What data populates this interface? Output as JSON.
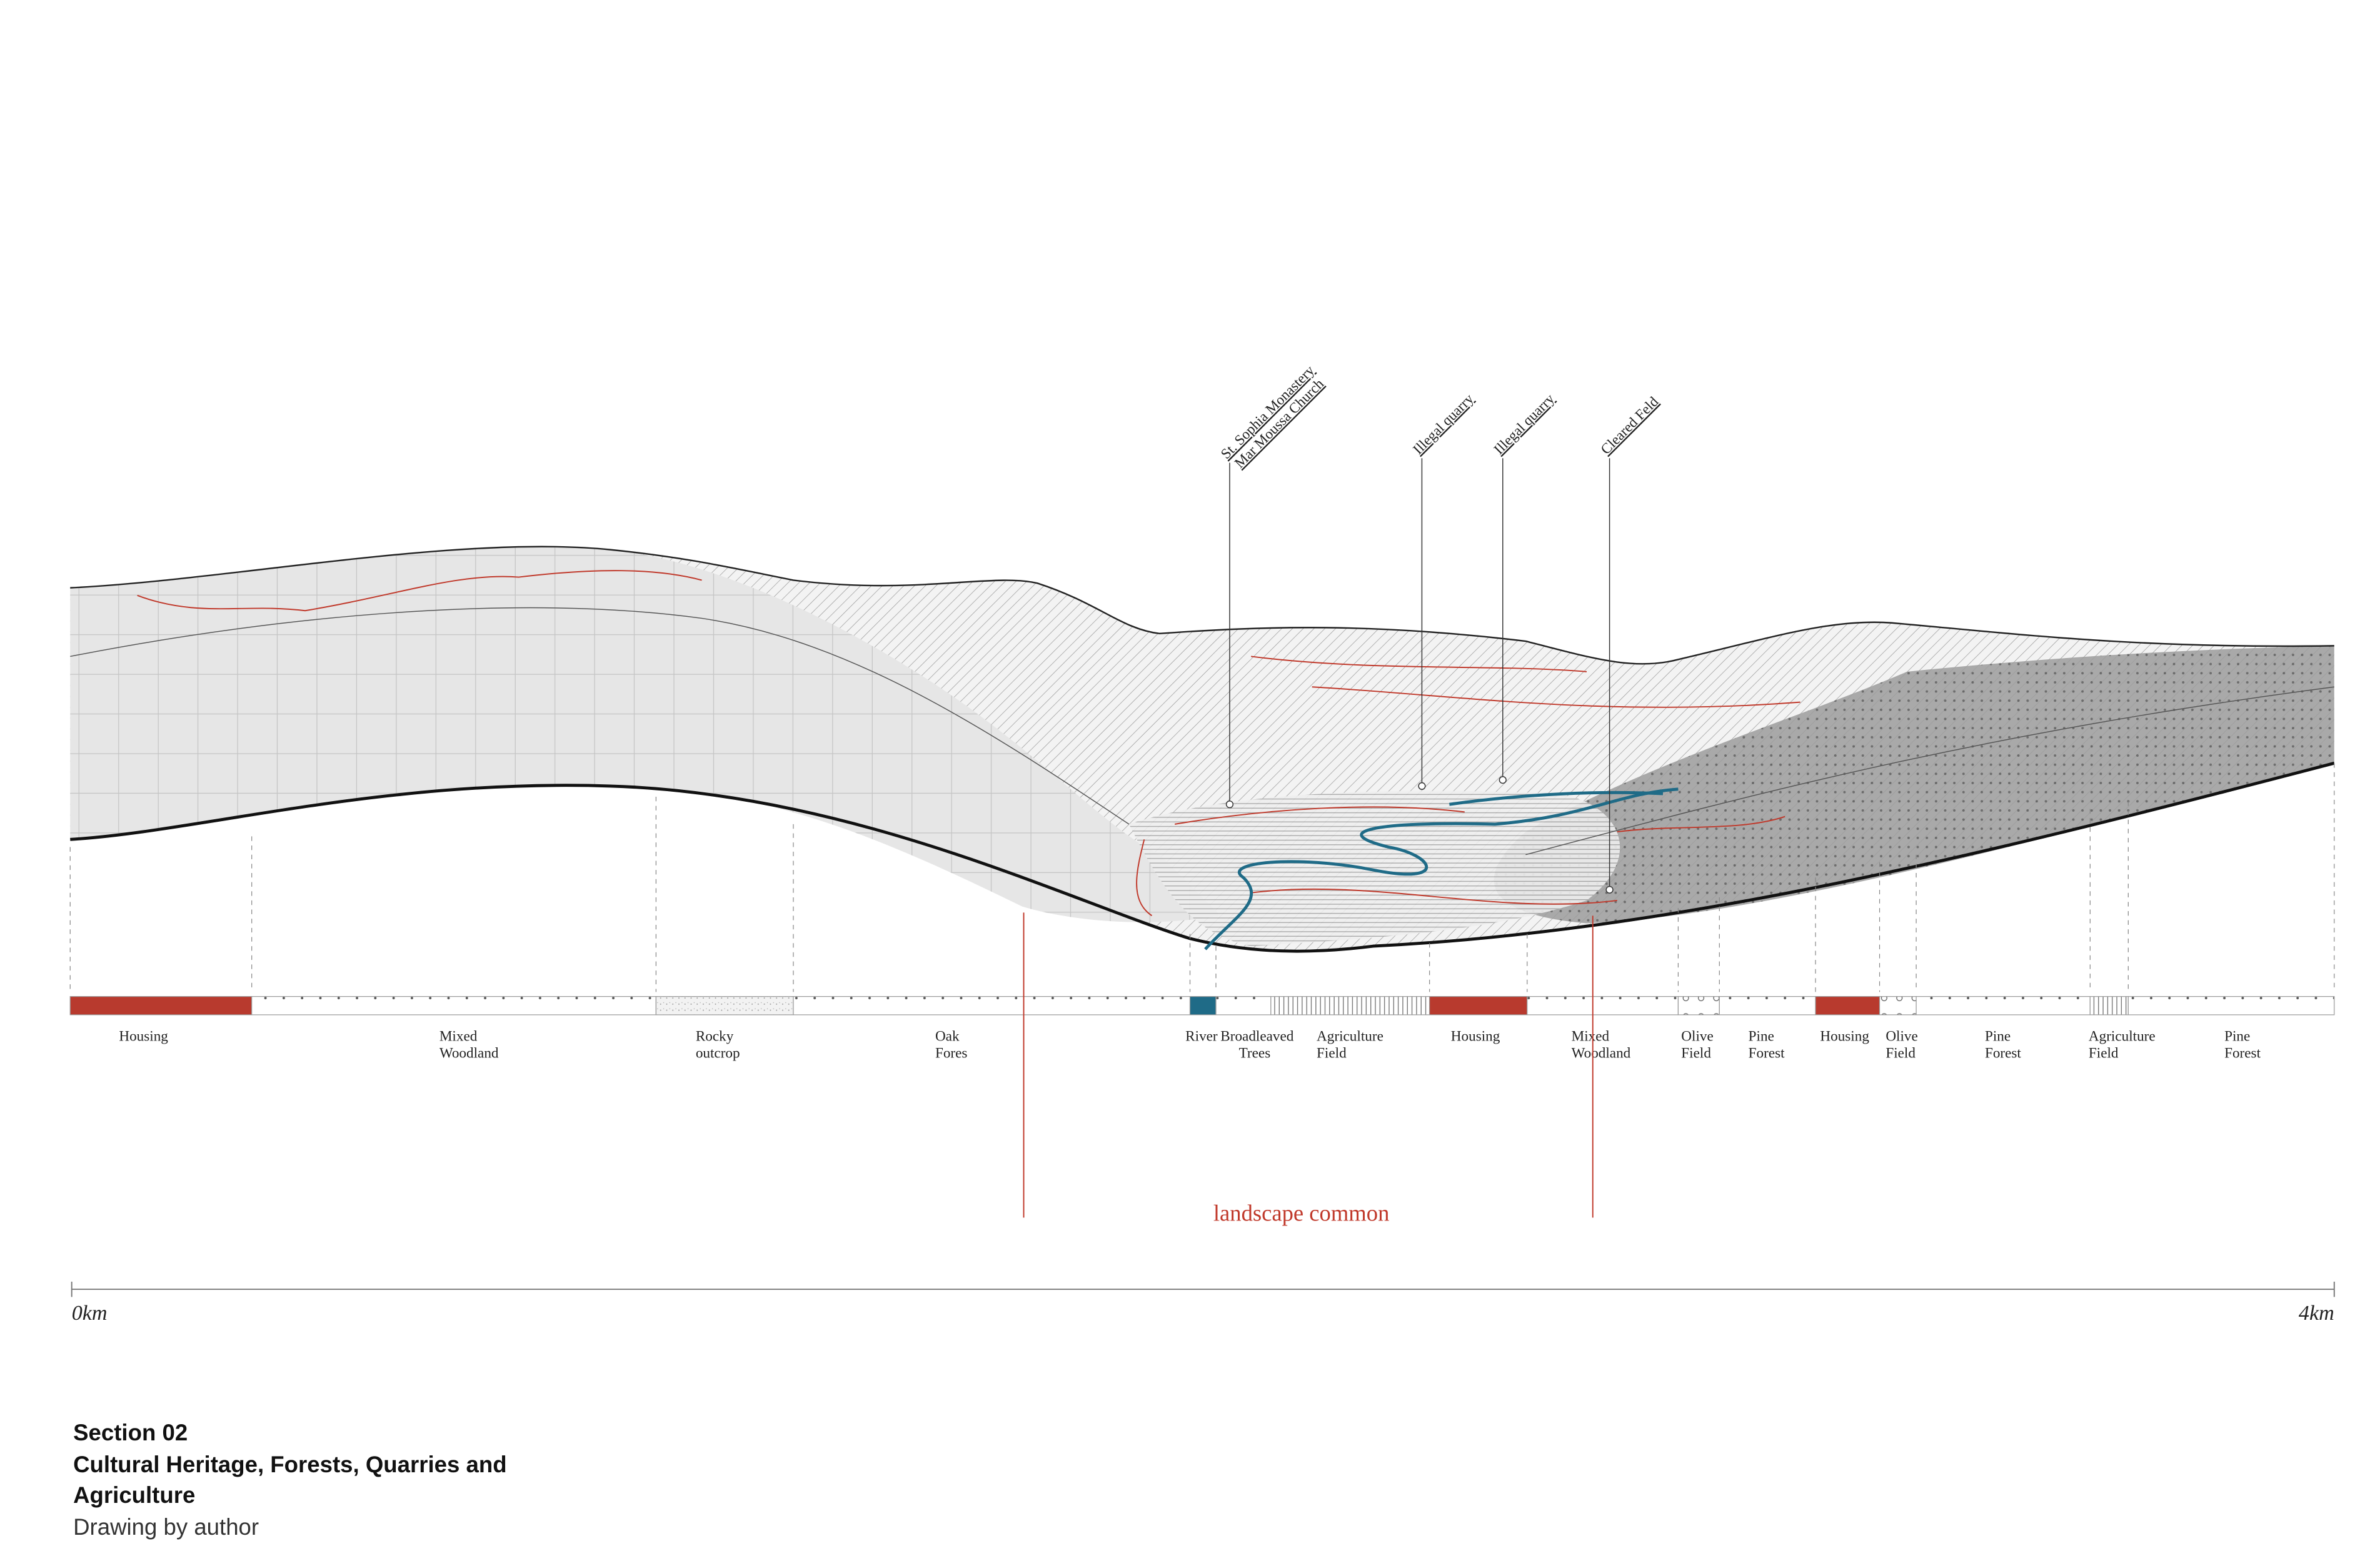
{
  "callouts": [
    {
      "lines": [
        "St. Sophia Monastery",
        "Mar Moussa Church"
      ]
    },
    {
      "lines": [
        "Illegal quarry"
      ]
    },
    {
      "lines": [
        "Illegal quarry"
      ]
    },
    {
      "lines": [
        "Cleared Feld"
      ]
    }
  ],
  "land_use": [
    {
      "lines": [
        "Housing"
      ]
    },
    {
      "lines": [
        "Mixed",
        "Woodland"
      ]
    },
    {
      "lines": [
        "Rocky",
        "outcrop"
      ]
    },
    {
      "lines": [
        "Oak",
        "Fores"
      ]
    },
    {
      "lines": [
        "River"
      ]
    },
    {
      "lines": [
        "Broadleaved",
        "Trees"
      ]
    },
    {
      "lines": [
        "Agriculture",
        "Field"
      ]
    },
    {
      "lines": [
        "Housing"
      ]
    },
    {
      "lines": [
        "Mixed",
        "Woodland"
      ]
    },
    {
      "lines": [
        "Olive",
        "Field"
      ]
    },
    {
      "lines": [
        "Pine",
        "Forest"
      ]
    },
    {
      "lines": [
        "Housing"
      ]
    },
    {
      "lines": [
        "Olive",
        "Field"
      ]
    },
    {
      "lines": [
        "Pine",
        "Forest"
      ]
    },
    {
      "lines": [
        "Agriculture",
        "Field"
      ]
    },
    {
      "lines": [
        "Pine",
        "Forest"
      ]
    }
  ],
  "landscape_label": "landscape common",
  "scale": {
    "start": "0km",
    "end": "4km"
  },
  "caption": {
    "section": "Section 02",
    "title_lines": [
      "Cultural Heritage, Forests, Quarries and",
      "Agriculture"
    ],
    "credit": "Drawing by author"
  }
}
